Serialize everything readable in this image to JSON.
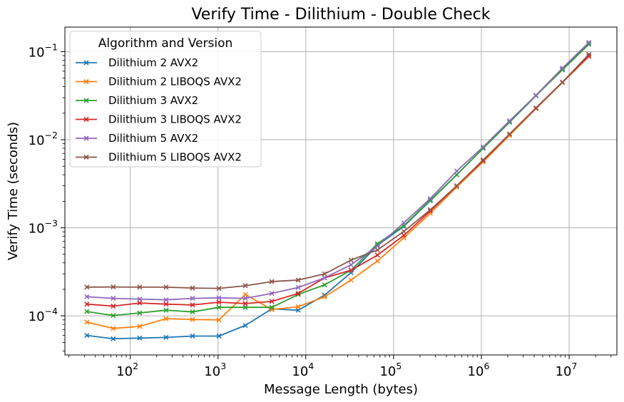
{
  "chart_data": {
    "type": "line",
    "title": "Verify Time - Dilithium - Double Check",
    "xlabel": "Message Length (bytes)",
    "ylabel": "Verify Time (seconds)",
    "xscale": "log",
    "yscale": "log",
    "xlim": [
      18,
      35000000
    ],
    "ylim": [
      3.6e-05,
      0.19
    ],
    "grid": true,
    "legend": {
      "title": "Algorithm and Version",
      "placement": "top-left"
    },
    "x_ticks": [
      {
        "value": 100,
        "base": "10",
        "exp": "2"
      },
      {
        "value": 1000,
        "base": "10",
        "exp": "3"
      },
      {
        "value": 10000,
        "base": "10",
        "exp": "4"
      },
      {
        "value": 100000,
        "base": "10",
        "exp": "5"
      },
      {
        "value": 1000000,
        "base": "10",
        "exp": "6"
      },
      {
        "value": 10000000,
        "base": "10",
        "exp": "7"
      }
    ],
    "y_ticks": [
      {
        "value": 0.0001,
        "base": "10",
        "exp": "−4"
      },
      {
        "value": 0.001,
        "base": "10",
        "exp": "−3"
      },
      {
        "value": 0.01,
        "base": "10",
        "exp": "−2"
      },
      {
        "value": 0.1,
        "base": "10",
        "exp": "−1"
      }
    ],
    "x": [
      32,
      64,
      128,
      256,
      512,
      1024,
      2048,
      4096,
      8192,
      16384,
      32768,
      65536,
      131072,
      262144,
      524288,
      1048576,
      2097152,
      4194304,
      8388608,
      16777216
    ],
    "series": [
      {
        "name": "Dilithium 2 AVX2",
        "color": "#1f77b4",
        "values": [
          6e-05,
          5.5e-05,
          5.6e-05,
          5.7e-05,
          5.9e-05,
          5.9e-05,
          7.8e-05,
          0.00012,
          0.000116,
          0.000172,
          0.00031,
          0.00063,
          0.00104,
          0.00203,
          0.004,
          0.008,
          0.0158,
          0.0316,
          0.063,
          0.125
        ]
      },
      {
        "name": "Dilithium 2 LIBOQS AVX2",
        "color": "#ff7f0e",
        "values": [
          8.5e-05,
          7.2e-05,
          7.6e-05,
          9.3e-05,
          9.1e-05,
          9e-05,
          0.000175,
          0.000118,
          0.000127,
          0.000165,
          0.000255,
          0.00042,
          0.00077,
          0.00146,
          0.0029,
          0.0056,
          0.0112,
          0.0225,
          0.0445,
          0.088
        ]
      },
      {
        "name": "Dilithium 3 AVX2",
        "color": "#2ca02c",
        "values": [
          0.000112,
          0.000101,
          0.000108,
          0.000116,
          0.000111,
          0.000125,
          0.000125,
          0.000125,
          0.000175,
          0.000225,
          0.00033,
          0.00066,
          0.00106,
          0.00206,
          0.004,
          0.008,
          0.0159,
          0.0318,
          0.062,
          0.121
        ]
      },
      {
        "name": "Dilithium 3 LIBOQS AVX2",
        "color": "#d62728",
        "values": [
          0.000136,
          0.000129,
          0.00014,
          0.000136,
          0.000133,
          0.000143,
          0.000138,
          0.000146,
          0.00018,
          0.00027,
          0.00033,
          0.00049,
          0.00082,
          0.00155,
          0.003,
          0.0058,
          0.0116,
          0.023,
          0.045,
          0.089
        ]
      },
      {
        "name": "Dilithium 5 AVX2",
        "color": "#9467bd",
        "values": [
          0.000165,
          0.000158,
          0.000155,
          0.000152,
          0.000158,
          0.00016,
          0.000158,
          0.00018,
          0.00021,
          0.00027,
          0.00038,
          0.00062,
          0.00114,
          0.00215,
          0.0044,
          0.0083,
          0.0164,
          0.032,
          0.065,
          0.127
        ]
      },
      {
        "name": "Dilithium 5 LIBOQS AVX2",
        "color": "#8c564b",
        "values": [
          0.000212,
          0.000213,
          0.000212,
          0.000212,
          0.000207,
          0.000205,
          0.00022,
          0.000245,
          0.000255,
          0.0003,
          0.00043,
          0.00056,
          0.00091,
          0.0016,
          0.003,
          0.0059,
          0.0116,
          0.0228,
          0.045,
          0.093
        ]
      }
    ]
  }
}
